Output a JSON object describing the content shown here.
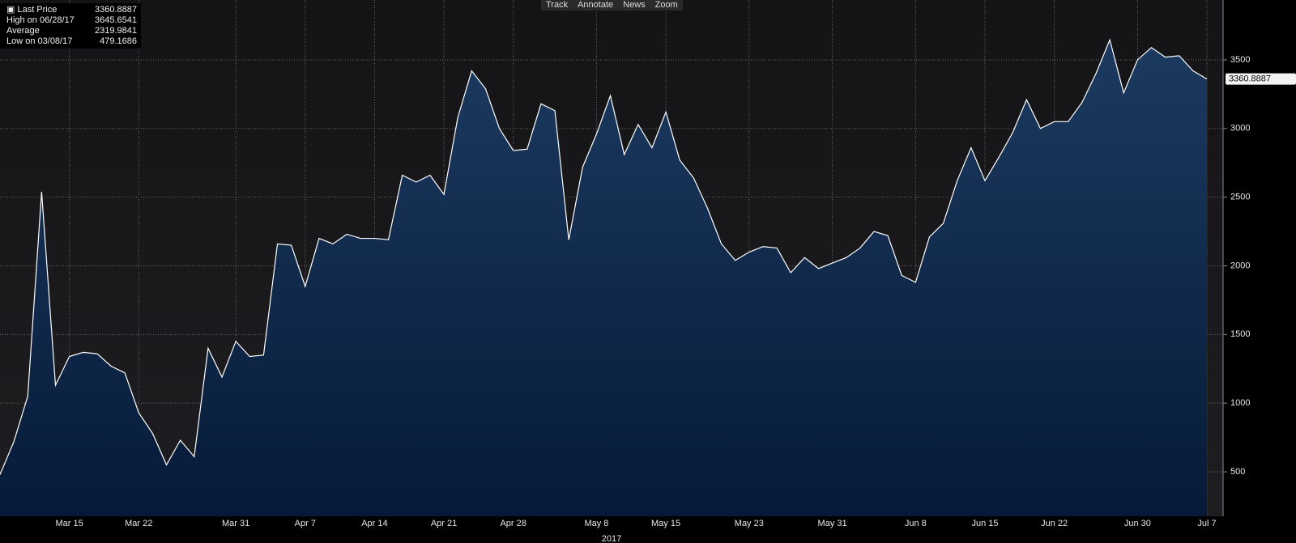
{
  "chart_data": {
    "type": "area",
    "xlabel": "2017",
    "categories": [
      null,
      null,
      null,
      null,
      null,
      "Mar 15",
      null,
      null,
      null,
      null,
      "Mar 22",
      null,
      null,
      null,
      null,
      null,
      null,
      "Mar 31",
      null,
      null,
      null,
      null,
      "Apr 7",
      null,
      null,
      null,
      null,
      "Apr 14",
      null,
      null,
      null,
      null,
      "Apr 21",
      null,
      null,
      null,
      null,
      "Apr 28",
      null,
      null,
      null,
      null,
      null,
      "May 8",
      null,
      null,
      null,
      null,
      "May 15",
      null,
      null,
      null,
      null,
      null,
      "May 23",
      null,
      null,
      null,
      null,
      null,
      "May 31",
      null,
      null,
      null,
      null,
      null,
      "Jun 8",
      null,
      null,
      null,
      null,
      "Jun 15",
      null,
      null,
      null,
      null,
      "Jun 22",
      null,
      null,
      null,
      null,
      null,
      "Jun 30",
      null,
      null,
      null,
      null,
      "Jul 7"
    ],
    "series": [
      {
        "name": "Last Price",
        "color": "#ffffff",
        "values": [
          479.1686,
          720,
          1050,
          2540,
          1130,
          1340,
          1370,
          1360,
          1270,
          1220,
          930,
          780,
          550,
          730,
          610,
          1400,
          1190,
          1450,
          1340,
          1350,
          2160,
          2150,
          1850,
          2200,
          2160,
          2230,
          2200,
          2200,
          2190,
          2660,
          2610,
          2660,
          2520,
          3080,
          3420,
          3290,
          3000,
          2840,
          2850,
          3180,
          3130,
          2190,
          2720,
          2960,
          3240,
          2810,
          3030,
          2860,
          3120,
          2770,
          2640,
          2420,
          2160,
          2040,
          2100,
          2140,
          2130,
          1950,
          2060,
          1980,
          2020,
          2060,
          2130,
          2250,
          2220,
          1930,
          1880,
          2210,
          2310,
          2620,
          2860,
          2620,
          2790,
          2970,
          3210,
          3000,
          3050,
          3050,
          3190,
          3400,
          3645.6541,
          3260,
          3500,
          3590,
          3520,
          3530,
          3420,
          3360.8887
        ]
      }
    ],
    "ylim": [
      176,
      3936
    ],
    "yticks": [
      500,
      1000,
      1500,
      2000,
      2500,
      3000,
      3500
    ],
    "grid": true,
    "stats": [
      {
        "label": "High on 06/28/17",
        "value": 3645.6541
      },
      {
        "label": "Average",
        "value": 2319.9841
      },
      {
        "label": "Low on 03/08/17",
        "value": 479.1686
      }
    ]
  },
  "toolbar": [
    "Track",
    "Annotate",
    "News",
    "Zoom"
  ]
}
